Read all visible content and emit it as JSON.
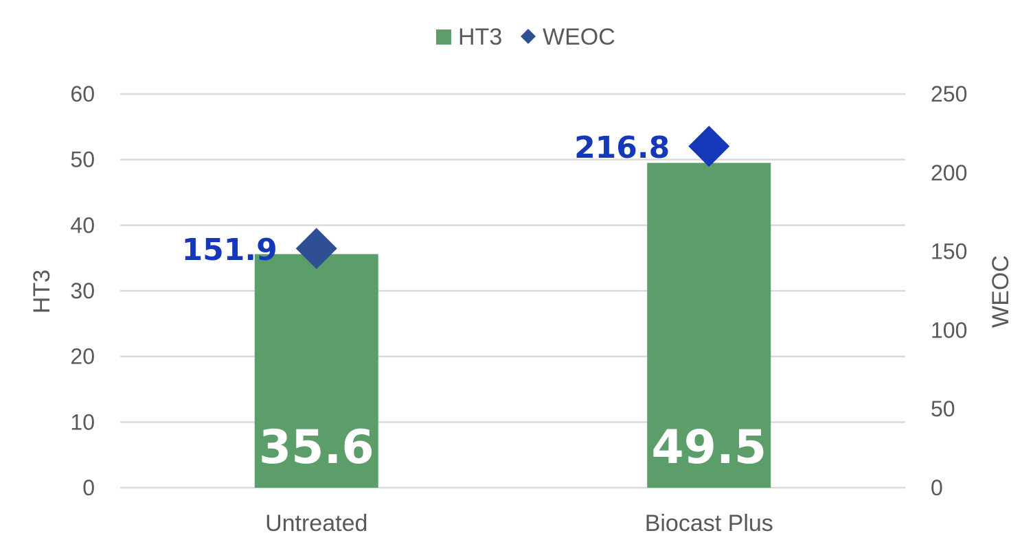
{
  "chart_data": {
    "type": "bar",
    "categories": [
      "Untreated",
      "Biocast Plus"
    ],
    "series": [
      {
        "name": "HT3",
        "kind": "bar",
        "axis": "left",
        "values": [
          35.6,
          49.5
        ],
        "labels": [
          "35.6",
          "49.5"
        ],
        "color": "#5c9e69"
      },
      {
        "name": "WEOC",
        "kind": "scatter",
        "marker": "diamond",
        "axis": "right",
        "values": [
          151.9,
          216.8
        ],
        "labels": [
          "151.9",
          "216.8"
        ],
        "colors": [
          "#2f4f94",
          "#1538b8"
        ]
      }
    ],
    "ylabel_left": "HT3",
    "ylabel_right": "WEOC",
    "ylim_left": [
      0,
      60
    ],
    "ylim_right": [
      0,
      250
    ],
    "yticks_left": [
      "0",
      "10",
      "20",
      "30",
      "40",
      "50",
      "60"
    ],
    "yticks_right": [
      "0",
      "50",
      "100",
      "150",
      "200",
      "250"
    ],
    "grid": true,
    "legend": {
      "placement": "top-center",
      "items": [
        "HT3",
        "WEOC"
      ]
    },
    "label_color": "#1538b8",
    "gridline_color": "#d9d9d9",
    "text_color": "#595959"
  }
}
